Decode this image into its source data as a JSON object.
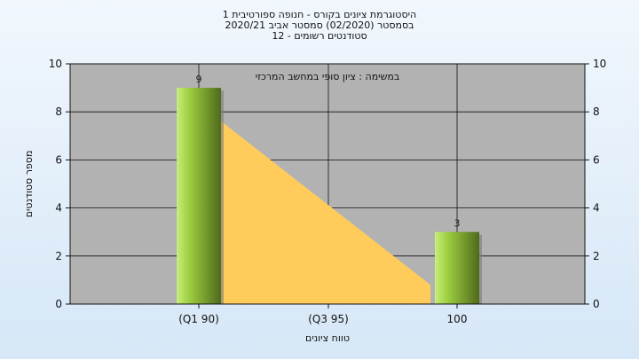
{
  "chart_data": {
    "type": "bar",
    "title_lines": [
      "היסטוגרמת ציונים בקורס - חנופה ספורטיבית 1",
      "בסמסטר  (02/2020)  סמסטר אביב 2020/21",
      "סטודנטים רשומים - 12"
    ],
    "annotation": "במשימה : ציון סופי במחשב המרכזי",
    "categories": [
      "(Q1 90)",
      "(Q3 95)",
      "100"
    ],
    "values": [
      9,
      null,
      3
    ],
    "data_labels": [
      "9",
      "",
      "3"
    ],
    "trend_area": [
      9,
      null,
      0
    ],
    "xlabel": "טווח ציונים",
    "ylabel": "מספר סטודנטים",
    "ylim": [
      0,
      10
    ],
    "yticks": [
      0,
      2,
      4,
      6,
      8,
      10
    ],
    "grid": true,
    "colors": {
      "plot_bg": "#b2b2b2",
      "bar_light": "#c6ef7a",
      "bar_mid": "#9ccc3e",
      "bar_dark": "#4f6a1c",
      "area": "#ffcc5c",
      "grid": "#111111"
    }
  }
}
